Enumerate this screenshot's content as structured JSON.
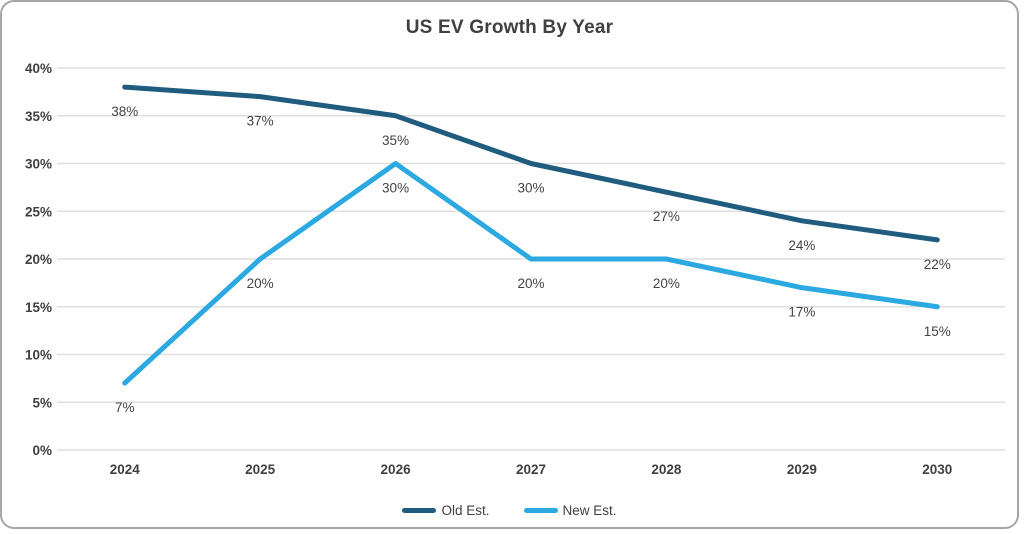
{
  "chart_data": {
    "type": "line",
    "title": "US EV Growth By Year",
    "categories": [
      "2024",
      "2025",
      "2026",
      "2027",
      "2028",
      "2029",
      "2030"
    ],
    "series": [
      {
        "name": "Old Est.",
        "color": "#1F5C7E",
        "values": [
          38,
          37,
          35,
          30,
          27,
          24,
          22
        ]
      },
      {
        "name": "New Est.",
        "color": "#2BA9E0",
        "values": [
          7,
          20,
          30,
          20,
          20,
          17,
          15
        ]
      }
    ],
    "y_ticks": [
      "0%",
      "5%",
      "10%",
      "15%",
      "20%",
      "25%",
      "30%",
      "35%",
      "40%"
    ],
    "data_label_texts": [
      [
        "38%",
        "37%",
        "35%",
        "30%",
        "27%",
        "24%",
        "22%"
      ],
      [
        "7%",
        "20%",
        "30%",
        "20%",
        "20%",
        "17%",
        "15%"
      ]
    ],
    "ylim": [
      0,
      40
    ],
    "y_step": 5,
    "value_format": "percent",
    "grid": true,
    "data_labels": true,
    "legend_position": "bottom"
  },
  "colors": {
    "text": "#404040",
    "data_label_text": "#444444",
    "gridline": "#dfdfdf",
    "frame_border": "#a6a6a6",
    "background": "#ffffff"
  }
}
